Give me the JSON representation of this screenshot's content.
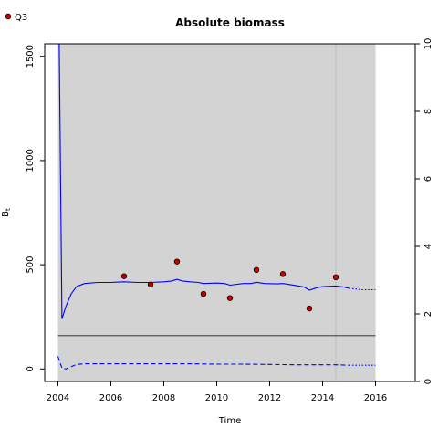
{
  "chart_data": {
    "type": "line",
    "title": "Absolute biomass",
    "xlabel": "Time",
    "ylabel": "B",
    "ylabel_subscript": "t",
    "xlim": [
      2003.5,
      2017.5
    ],
    "ylim": [
      -60,
      1560
    ],
    "xticks": [
      2004,
      2006,
      2008,
      2010,
      2012,
      2014,
      2016
    ],
    "yticks": [
      0,
      500,
      1000,
      1500
    ],
    "yticks_right": [
      0,
      2,
      4,
      6,
      8,
      10
    ],
    "ylim_right": [
      0,
      10
    ],
    "shaded_region": [
      2004,
      2016
    ],
    "vertical_line_x": 2014.5,
    "horizontal_line_y": 160,
    "legend": {
      "position": "top-left",
      "entries": [
        {
          "label": "Q3",
          "marker": "point",
          "color": "#cc0000"
        }
      ]
    },
    "series": [
      {
        "style": "solid",
        "color": "#0000ff",
        "x": [
          2004.05,
          2004.15,
          2004.3,
          2004.5,
          2004.7,
          2005.0,
          2005.5,
          2006.0,
          2006.5,
          2007.0,
          2007.5,
          2008.0,
          2008.3,
          2008.5,
          2008.7,
          2009.0,
          2009.3,
          2009.5,
          2010.0,
          2010.3,
          2010.5,
          2011.0,
          2011.3,
          2011.5,
          2011.8,
          2012.3,
          2012.5,
          2013.0,
          2013.3,
          2013.5,
          2013.8,
          2014.0,
          2014.5,
          2014.8,
          2015.0
        ],
        "y": [
          1560,
          240,
          300,
          360,
          395,
          410,
          415,
          415,
          418,
          415,
          415,
          418,
          422,
          430,
          422,
          418,
          415,
          410,
          412,
          410,
          402,
          410,
          410,
          416,
          410,
          408,
          410,
          400,
          393,
          378,
          390,
          395,
          398,
          393,
          387
        ]
      },
      {
        "style": "dotted",
        "color": "#0000ff",
        "x": [
          2015.0,
          2015.5,
          2016.0
        ],
        "y": [
          387,
          380,
          380
        ]
      },
      {
        "style": "dashed",
        "color": "#0000ff",
        "x": [
          2004.0,
          2004.15,
          2004.3,
          2004.7,
          2005.0,
          2006.0,
          2007.0,
          2008.0,
          2009.0,
          2010.0,
          2011.0,
          2012.0,
          2013.0,
          2014.0,
          2014.5,
          2015.0
        ],
        "y": [
          60,
          5,
          0,
          22,
          25,
          25,
          25,
          25,
          25,
          23,
          23,
          22,
          20,
          20,
          20,
          18
        ]
      },
      {
        "style": "dotted",
        "color": "#0000ff",
        "x": [
          2015.0,
          2016.0
        ],
        "y": [
          18,
          18
        ]
      }
    ],
    "points": {
      "name": "Q3",
      "x": [
        2006.5,
        2007.5,
        2008.5,
        2009.5,
        2010.5,
        2011.5,
        2012.5,
        2013.5,
        2014.5
      ],
      "y": [
        445,
        405,
        515,
        360,
        340,
        475,
        455,
        290,
        440
      ]
    }
  }
}
